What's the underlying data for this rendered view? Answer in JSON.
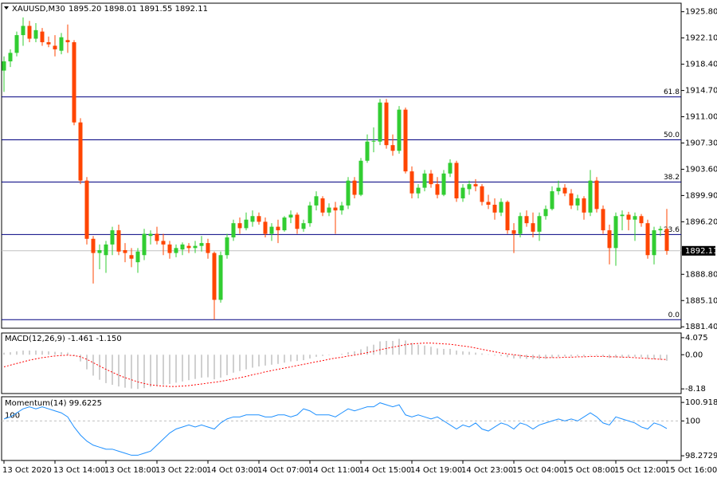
{
  "chart_data": [
    {
      "type": "candlestick",
      "title": "XAUUSD,M30",
      "subtitle": "1895.20 1898.01 1891.55 1892.11",
      "up_color": "#32cd32",
      "down_color": "#ff4500",
      "level_color": "#000080",
      "ylim": [
        1881.2,
        1927.0
      ],
      "yticks": [
        {
          "value": 1925.8,
          "label": "1925.80"
        },
        {
          "value": 1922.1,
          "label": "1922.10"
        },
        {
          "value": 1918.4,
          "label": "1918.40"
        },
        {
          "value": 1914.7,
          "label": "1914.70"
        },
        {
          "value": 1911.0,
          "label": "1911.00"
        },
        {
          "value": 1907.3,
          "label": "1907.30"
        },
        {
          "value": 1903.6,
          "label": "1903.60"
        },
        {
          "value": 1899.9,
          "label": "1899.90"
        },
        {
          "value": 1896.2,
          "label": "1896.20"
        },
        {
          "value": 1888.8,
          "label": "1888.80"
        },
        {
          "value": 1885.1,
          "label": "1885.10"
        },
        {
          "value": 1881.4,
          "label": "1881.40"
        }
      ],
      "levels": [
        {
          "value": 1913.8,
          "label": "61.8"
        },
        {
          "value": 1907.75,
          "label": "50.0"
        },
        {
          "value": 1901.8,
          "label": "38.2"
        },
        {
          "value": 1894.4,
          "label": "23.6"
        },
        {
          "value": 1882.4,
          "label": "0.0"
        }
      ],
      "current_price": 1892.11,
      "ohlc": [
        [
          1917.5,
          1919.5,
          1914.5,
          1918.8
        ],
        [
          1918.8,
          1920.5,
          1918,
          1920
        ],
        [
          1920,
          1923,
          1919.5,
          1922.5
        ],
        [
          1922.5,
          1925,
          1921,
          1923.8
        ],
        [
          1923.8,
          1924.5,
          1921.5,
          1922
        ],
        [
          1922,
          1924.2,
          1921.5,
          1923.2
        ],
        [
          1923,
          1923.5,
          1921,
          1921.5
        ],
        [
          1921.5,
          1922.3,
          1920.8,
          1921.2
        ],
        [
          1921,
          1922.5,
          1919.5,
          1920.5
        ],
        [
          1920.3,
          1922.8,
          1919.8,
          1922.2
        ],
        [
          1921.8,
          1924,
          1920,
          1921.5
        ],
        [
          1921.5,
          1921.8,
          1909.8,
          1910.2
        ],
        [
          1910.2,
          1910.8,
          1901.5,
          1902
        ],
        [
          1902,
          1902.5,
          1893,
          1893.8
        ],
        [
          1893.8,
          1894.2,
          1887.5,
          1891.8
        ],
        [
          1891.8,
          1893,
          1889.5,
          1892.2
        ],
        [
          1891.5,
          1893.5,
          1889,
          1893
        ],
        [
          1893,
          1895.5,
          1891.5,
          1895
        ],
        [
          1895,
          1895.8,
          1891.5,
          1892
        ],
        [
          1892.2,
          1893.2,
          1890.5,
          1891.8
        ],
        [
          1891.5,
          1892.5,
          1889.8,
          1891
        ],
        [
          1890.5,
          1892.5,
          1889,
          1892
        ],
        [
          1891.5,
          1895.2,
          1890.8,
          1894.5
        ],
        [
          1894.2,
          1895,
          1893,
          1894.5
        ],
        [
          1894.5,
          1895.5,
          1893,
          1893.5
        ],
        [
          1893.5,
          1894.5,
          1891.5,
          1893
        ],
        [
          1893,
          1893.5,
          1891,
          1891.8
        ],
        [
          1891.8,
          1893,
          1891.2,
          1892.5
        ],
        [
          1892.3,
          1893.3,
          1891.5,
          1893
        ],
        [
          1892.8,
          1893.2,
          1891.8,
          1892.5
        ],
        [
          1892.5,
          1893.5,
          1891.8,
          1892.8
        ],
        [
          1892.8,
          1894.2,
          1892,
          1893.2
        ],
        [
          1893.2,
          1893.8,
          1891,
          1891.8
        ],
        [
          1891.8,
          1892,
          1882.4,
          1885.2
        ],
        [
          1885.2,
          1892,
          1884.8,
          1891.5
        ],
        [
          1891.5,
          1894.5,
          1891,
          1894
        ],
        [
          1894,
          1896.5,
          1893.5,
          1896
        ],
        [
          1896,
          1896.8,
          1894.5,
          1895.3
        ],
        [
          1895.3,
          1897.5,
          1895,
          1896.5
        ],
        [
          1896.2,
          1897.8,
          1895.5,
          1897
        ],
        [
          1897,
          1897.5,
          1895.8,
          1896.2
        ],
        [
          1896.2,
          1896.8,
          1894,
          1894.5
        ],
        [
          1894.5,
          1896,
          1893.5,
          1895.5
        ],
        [
          1895.5,
          1896.5,
          1893.2,
          1895
        ],
        [
          1895,
          1897,
          1894.8,
          1896.8
        ],
        [
          1896.8,
          1897.8,
          1896,
          1897.2
        ],
        [
          1897.2,
          1897.5,
          1894.5,
          1895.2
        ],
        [
          1895.2,
          1896.5,
          1894.8,
          1896
        ],
        [
          1896,
          1899,
          1895.5,
          1898.5
        ],
        [
          1898.5,
          1900.5,
          1897.8,
          1899.8
        ],
        [
          1899.5,
          1899.8,
          1897,
          1897.5
        ],
        [
          1897.5,
          1898.8,
          1897,
          1898.2
        ],
        [
          1898.2,
          1899,
          1894.5,
          1897.8
        ],
        [
          1897.8,
          1899,
          1897.2,
          1898.5
        ],
        [
          1898.5,
          1902.5,
          1898,
          1902
        ],
        [
          1902,
          1902.5,
          1899.5,
          1900
        ],
        [
          1900,
          1905.2,
          1899.8,
          1904.8
        ],
        [
          1904.8,
          1908.5,
          1904.5,
          1907.5
        ],
        [
          1907.5,
          1909.5,
          1906,
          1907.6
        ],
        [
          1907.5,
          1913.5,
          1907,
          1913
        ],
        [
          1913,
          1913.5,
          1906.5,
          1907
        ],
        [
          1907,
          1908.5,
          1905.5,
          1906.2
        ],
        [
          1906.2,
          1912.5,
          1905.8,
          1912
        ],
        [
          1912,
          1912.3,
          1903,
          1903.3
        ],
        [
          1903.3,
          1904,
          1899.5,
          1900.2
        ],
        [
          1900.2,
          1901.5,
          1899.5,
          1901
        ],
        [
          1901,
          1903.5,
          1900.5,
          1903
        ],
        [
          1903,
          1903.5,
          1901,
          1901.5
        ],
        [
          1901.5,
          1902.5,
          1899.5,
          1900
        ],
        [
          1900,
          1903.5,
          1899.8,
          1903
        ],
        [
          1903,
          1905,
          1902.5,
          1904.5
        ],
        [
          1904.5,
          1904.8,
          1899,
          1899.5
        ],
        [
          1899.5,
          1901.5,
          1899,
          1901
        ],
        [
          1900.8,
          1902,
          1900,
          1901.5
        ],
        [
          1901.5,
          1902.2,
          1900.5,
          1901.2
        ],
        [
          1901.2,
          1901.5,
          1898.5,
          1899
        ],
        [
          1899,
          1900,
          1898,
          1898.6
        ],
        [
          1898.6,
          1899.5,
          1896.5,
          1897.5
        ],
        [
          1897.5,
          1899.5,
          1897,
          1899
        ],
        [
          1899,
          1899.2,
          1894.5,
          1895
        ],
        [
          1895,
          1896,
          1891.8,
          1894.5
        ],
        [
          1894.5,
          1897.5,
          1894,
          1897
        ],
        [
          1897,
          1897.8,
          1895.5,
          1896
        ],
        [
          1896,
          1897.5,
          1894,
          1894.8
        ],
        [
          1894.8,
          1897.5,
          1893.5,
          1897
        ],
        [
          1897,
          1898.5,
          1896.5,
          1898
        ],
        [
          1898,
          1901.2,
          1897.8,
          1900.5
        ],
        [
          1900.5,
          1902,
          1900,
          1901
        ],
        [
          1901,
          1901.5,
          1899.8,
          1900.2
        ],
        [
          1900.2,
          1900.8,
          1898,
          1898.5
        ],
        [
          1898.5,
          1900,
          1897.8,
          1899.5
        ],
        [
          1899.5,
          1899.8,
          1896.5,
          1897.5
        ],
        [
          1897.5,
          1903.5,
          1897,
          1902
        ],
        [
          1902,
          1902.5,
          1897.5,
          1898
        ],
        [
          1898,
          1898.5,
          1894.5,
          1895
        ],
        [
          1895,
          1895.8,
          1890.2,
          1892.5
        ],
        [
          1892.5,
          1897.5,
          1890,
          1897
        ],
        [
          1897,
          1897.8,
          1895,
          1897.2
        ],
        [
          1897.2,
          1897.6,
          1895,
          1896.5
        ],
        [
          1896.5,
          1897.5,
          1893.5,
          1897
        ],
        [
          1897,
          1897.3,
          1895.5,
          1896
        ],
        [
          1896,
          1896.5,
          1891,
          1891.5
        ],
        [
          1891.5,
          1895.5,
          1890.2,
          1895
        ],
        [
          1895,
          1895.6,
          1894.2,
          1895.2
        ],
        [
          1895.2,
          1898.01,
          1891.55,
          1892.11
        ]
      ]
    },
    {
      "type": "macd",
      "title": "MACD(12,26,9) -1.461 -1.150",
      "ylim": [
        -9.3,
        5.2
      ],
      "yticks": [
        4.075,
        {
          "value": 0,
          "label": "0.00"
        },
        -8.18
      ],
      "series": [
        {
          "style": "histogram",
          "color": "#c0c0c0",
          "values": [
            0.5,
            0.6,
            0.8,
            1.0,
            1.0,
            1.0,
            0.9,
            0.8,
            0.7,
            0.6,
            0.5,
            -0.3,
            -1.6,
            -3.5,
            -5.0,
            -6.0,
            -6.8,
            -7.2,
            -7.6,
            -7.9,
            -8.1,
            -8.2,
            -8.0,
            -7.7,
            -7.4,
            -7.2,
            -7.0,
            -6.7,
            -6.4,
            -6.1,
            -5.8,
            -5.5,
            -5.4,
            -5.9,
            -5.5,
            -4.9,
            -4.3,
            -3.9,
            -3.5,
            -3.1,
            -2.8,
            -2.6,
            -2.4,
            -2.2,
            -1.9,
            -1.6,
            -1.5,
            -1.3,
            -0.9,
            -0.5,
            -0.3,
            -0.1,
            0.0,
            0.2,
            0.6,
            0.8,
            1.3,
            2.0,
            2.4,
            3.2,
            3.3,
            3.3,
            3.8,
            3.4,
            2.8,
            2.4,
            2.2,
            1.9,
            1.5,
            1.4,
            1.4,
            1.0,
            0.8,
            0.7,
            0.5,
            0.3,
            0.1,
            -0.2,
            -0.3,
            -0.6,
            -0.9,
            -0.9,
            -1.0,
            -1.1,
            -1.1,
            -1.0,
            -0.7,
            -0.5,
            -0.4,
            -0.4,
            -0.3,
            -0.4,
            -0.1,
            -0.2,
            -0.4,
            -0.8,
            -0.7,
            -0.6,
            -0.6,
            -0.5,
            -0.6,
            -1.0,
            -1.1,
            -1.2,
            -1.461
          ]
        },
        {
          "style": "dotted",
          "color": "#ff0000",
          "values": [
            -2.9,
            -2.5,
            -2.1,
            -1.7,
            -1.3,
            -1.0,
            -0.7,
            -0.5,
            -0.3,
            -0.2,
            -0.1,
            -0.2,
            -0.5,
            -1.1,
            -1.9,
            -2.7,
            -3.5,
            -4.2,
            -4.9,
            -5.5,
            -6.0,
            -6.5,
            -6.9,
            -7.2,
            -7.4,
            -7.5,
            -7.6,
            -7.6,
            -7.5,
            -7.4,
            -7.2,
            -7.0,
            -6.8,
            -6.6,
            -6.4,
            -6.1,
            -5.8,
            -5.5,
            -5.2,
            -4.8,
            -4.5,
            -4.1,
            -3.8,
            -3.5,
            -3.2,
            -2.9,
            -2.6,
            -2.3,
            -2.0,
            -1.7,
            -1.4,
            -1.1,
            -0.8,
            -0.6,
            -0.3,
            -0.1,
            0.2,
            0.5,
            0.8,
            1.2,
            1.5,
            1.8,
            2.1,
            2.4,
            2.6,
            2.7,
            2.8,
            2.8,
            2.7,
            2.6,
            2.5,
            2.3,
            2.1,
            1.9,
            1.6,
            1.3,
            1.0,
            0.7,
            0.4,
            0.2,
            0.0,
            -0.2,
            -0.4,
            -0.5,
            -0.6,
            -0.7,
            -0.7,
            -0.7,
            -0.6,
            -0.6,
            -0.5,
            -0.5,
            -0.4,
            -0.4,
            -0.4,
            -0.5,
            -0.5,
            -0.6,
            -0.6,
            -0.7,
            -0.8,
            -0.9,
            -1.0,
            -1.1,
            -1.15
          ]
        }
      ]
    },
    {
      "type": "momentum",
      "title": "Momentum(14) 99.6225",
      "ylim": [
        98.04,
        101.2
      ],
      "yticks": [
        100.9183,
        100,
        98.2729
      ],
      "level": 100,
      "color": "#1e90ff",
      "categories": [
        "13 Oct 2020",
        null,
        null,
        null,
        null,
        null,
        null,
        null,
        "13 Oct 14:00",
        null,
        null,
        null,
        null,
        null,
        null,
        null,
        "13 Oct 18:00",
        null,
        null,
        null,
        null,
        null,
        null,
        null,
        "13 Oct 22:00",
        null,
        null,
        null,
        null,
        null,
        null,
        null,
        "14 Oct 03:00",
        null,
        null,
        null,
        null,
        null,
        null,
        null,
        "14 Oct 07:00",
        null,
        null,
        null,
        null,
        null,
        null,
        null,
        "14 Oct 11:00",
        null,
        null,
        null,
        null,
        null,
        null,
        null,
        "14 Oct 15:00",
        null,
        null,
        null,
        null,
        null,
        null,
        null,
        "14 Oct 19:00",
        null,
        null,
        null,
        null,
        null,
        null,
        null,
        "14 Oct 23:00",
        null,
        null,
        null,
        null,
        null,
        null,
        null,
        "15 Oct 04:00",
        null,
        null,
        null,
        null,
        null,
        null,
        null,
        "15 Oct 08:00",
        null,
        null,
        null,
        null,
        null,
        null,
        null,
        "15 Oct 12:00",
        null,
        null,
        null,
        null,
        null,
        null,
        null,
        "15 Oct 16:00"
      ],
      "values": [
        100.1,
        100.2,
        100.4,
        100.6,
        100.7,
        100.6,
        100.7,
        100.6,
        100.5,
        100.4,
        100.2,
        99.7,
        99.3,
        99.0,
        98.8,
        98.7,
        98.6,
        98.6,
        98.5,
        98.4,
        98.3,
        98.3,
        98.4,
        98.5,
        98.8,
        99.1,
        99.4,
        99.6,
        99.7,
        99.8,
        99.7,
        99.8,
        99.7,
        99.6,
        99.9,
        100.1,
        100.2,
        100.2,
        100.3,
        100.3,
        100.3,
        100.2,
        100.2,
        100.3,
        100.3,
        100.2,
        100.3,
        100.6,
        100.5,
        100.3,
        100.3,
        100.3,
        100.2,
        100.4,
        100.6,
        100.5,
        100.6,
        100.7,
        100.7,
        100.9,
        100.8,
        100.7,
        100.8,
        100.3,
        100.2,
        100.3,
        100.2,
        100.1,
        100.2,
        100.0,
        99.8,
        99.6,
        99.8,
        99.7,
        99.9,
        99.6,
        99.5,
        99.7,
        99.9,
        99.8,
        99.6,
        99.9,
        99.8,
        99.6,
        99.8,
        99.9,
        100.0,
        100.1,
        100.0,
        100.1,
        100.0,
        100.2,
        100.4,
        100.2,
        99.9,
        99.8,
        100.2,
        100.1,
        100.0,
        99.9,
        99.7,
        99.6,
        99.9,
        99.8,
        99.6225
      ]
    }
  ]
}
